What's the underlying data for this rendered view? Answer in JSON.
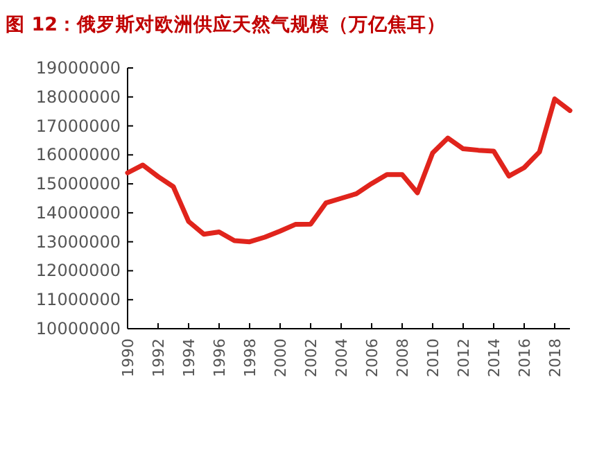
{
  "chart_data": {
    "type": "line",
    "title": "图 12：俄罗斯对欧洲供应天然气规模（万亿焦耳）",
    "x": [
      1990,
      1991,
      1992,
      1993,
      1994,
      1995,
      1996,
      1997,
      1998,
      1999,
      2000,
      2001,
      2002,
      2003,
      2004,
      2005,
      2006,
      2007,
      2008,
      2009,
      2010,
      2011,
      2012,
      2013,
      2014,
      2015,
      2016,
      2017,
      2018,
      2019
    ],
    "series": [
      {
        "color": "#e0241c",
        "values": [
          15380000,
          15650000,
          15250000,
          14900000,
          13700000,
          13260000,
          13340000,
          13040000,
          13000000,
          13160000,
          13370000,
          13600000,
          13610000,
          14340000,
          14500000,
          14660000,
          15010000,
          15320000,
          15320000,
          14690000,
          16070000,
          16580000,
          16210000,
          16160000,
          16130000,
          15270000,
          15560000,
          16100000,
          17930000,
          17530000
        ]
      }
    ],
    "xlim": [
      1990,
      2019
    ],
    "xticks": [
      1990,
      1992,
      1994,
      1996,
      1998,
      2000,
      2002,
      2004,
      2006,
      2008,
      2010,
      2012,
      2014,
      2016,
      2018
    ],
    "ylim": [
      10000000,
      19000000
    ],
    "yticks": [
      10000000,
      11000000,
      12000000,
      13000000,
      14000000,
      15000000,
      16000000,
      17000000,
      18000000,
      19000000
    ],
    "grid": false,
    "marker": "none",
    "line_style": "solid"
  }
}
